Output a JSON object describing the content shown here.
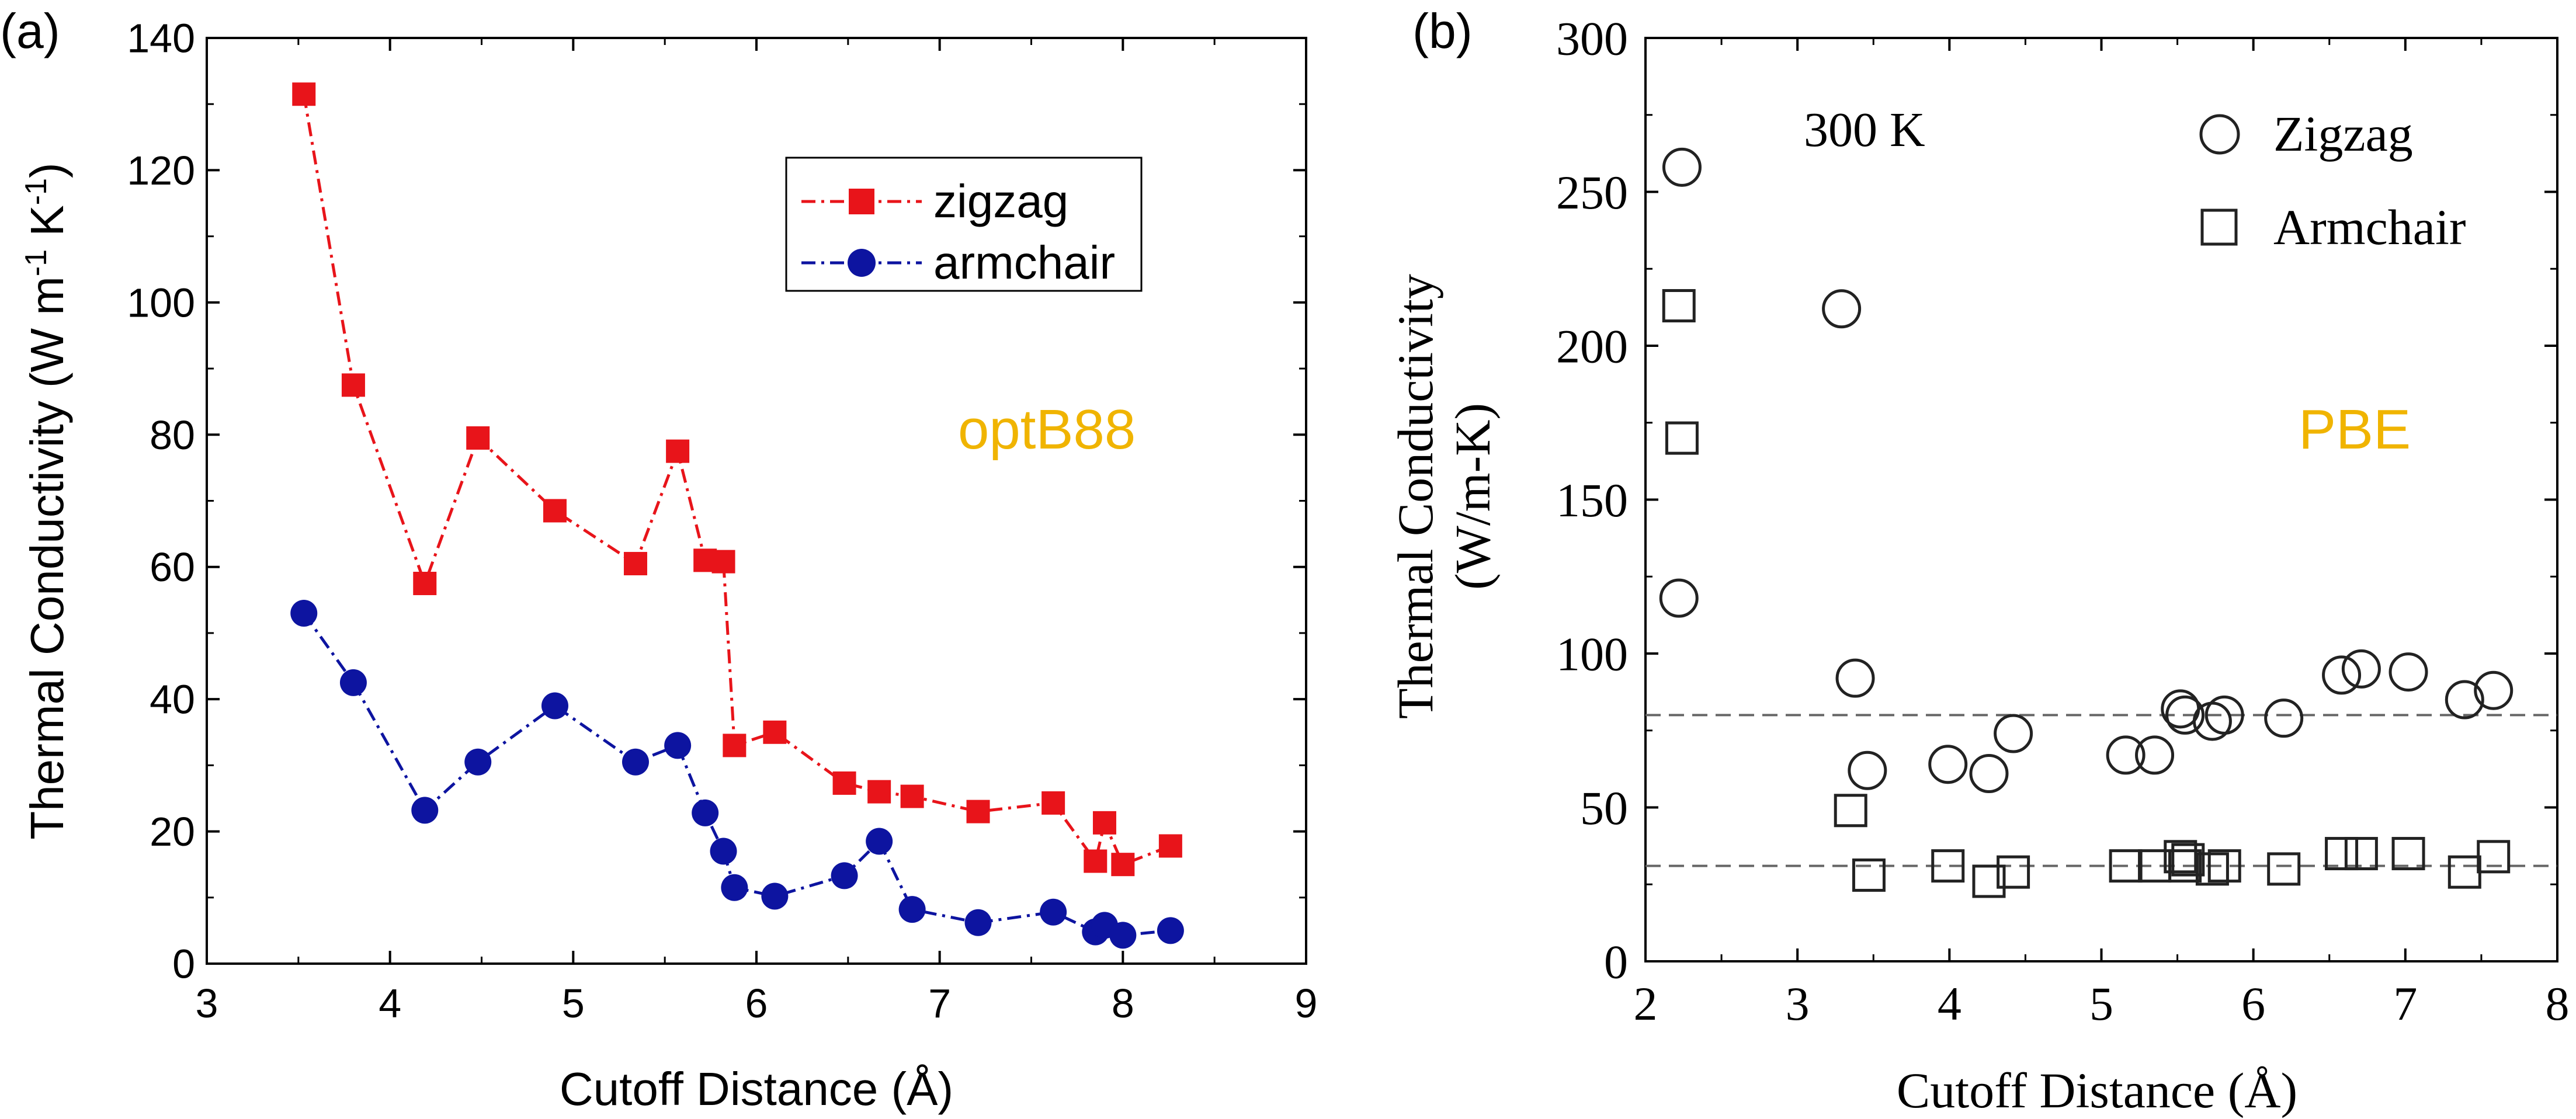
{
  "chart_data": [
    {
      "type": "line",
      "panel_label": "(a)",
      "title": "",
      "xlabel": "Cutoff Distance (Å)",
      "ylabel_main": "Thermal Conductivity (W m",
      "ylabel_sup1": "-1",
      "ylabel_mid": " K",
      "ylabel_sup2": "-1",
      "ylabel_end": ")",
      "xlim": [
        3,
        9
      ],
      "ylim": [
        0,
        140
      ],
      "xticks": [
        3,
        4,
        5,
        6,
        7,
        8,
        9
      ],
      "xtick_labels": [
        "3",
        "4",
        "5",
        "6",
        "7",
        "8",
        "9"
      ],
      "yticks": [
        0,
        20,
        40,
        60,
        80,
        100,
        120,
        140
      ],
      "ytick_labels": [
        "0",
        "20",
        "40",
        "60",
        "80",
        "100",
        "120",
        "140"
      ],
      "annotation": "optB88",
      "annotation_color": "#f0b400",
      "legend_position": "top-right",
      "series": [
        {
          "name": "zigzag",
          "marker": "square",
          "color": "#e8141a",
          "x": [
            3.53,
            3.8,
            4.19,
            4.48,
            4.9,
            5.34,
            5.57,
            5.72,
            5.82,
            5.88,
            6.1,
            6.48,
            6.67,
            6.85,
            7.21,
            7.62,
            7.85,
            7.9,
            8.0,
            8.26
          ],
          "values": [
            131.5,
            87.5,
            57.5,
            79.5,
            68.5,
            60.5,
            77.5,
            61,
            60.8,
            33,
            35,
            27.3,
            26,
            25.3,
            23,
            24.3,
            15.5,
            21.3,
            15,
            17.8
          ]
        },
        {
          "name": "armchair",
          "marker": "circle",
          "color": "#0d14a0",
          "x": [
            3.53,
            3.8,
            4.19,
            4.48,
            4.9,
            5.34,
            5.57,
            5.72,
            5.82,
            5.88,
            6.1,
            6.48,
            6.67,
            6.85,
            7.21,
            7.62,
            7.85,
            7.9,
            8.0,
            8.26
          ],
          "values": [
            53,
            42.5,
            23.2,
            30.5,
            39,
            30.5,
            33,
            22.8,
            17,
            11.5,
            10.2,
            13.3,
            18.5,
            8.2,
            6.2,
            7.8,
            4.8,
            5.8,
            4.3,
            5
          ]
        }
      ]
    },
    {
      "type": "scatter",
      "panel_label": "(b)",
      "title": "",
      "xlabel": "Cutoff Distance (Å)",
      "ylabel_line1": "Thermal Conductivity",
      "ylabel_line2": "(W/m-K)",
      "xlim": [
        2,
        8
      ],
      "ylim": [
        0,
        300
      ],
      "xticks": [
        2,
        3,
        4,
        5,
        6,
        7,
        8
      ],
      "xtick_labels": [
        "2",
        "3",
        "4",
        "5",
        "6",
        "7",
        "8"
      ],
      "yticks": [
        0,
        50,
        100,
        150,
        200,
        250,
        300
      ],
      "ytick_labels": [
        "0",
        "50",
        "100",
        "150",
        "200",
        "250",
        "300"
      ],
      "temperature_label": "300 K",
      "annotation": "PBE",
      "annotation_color": "#f0b400",
      "reference_lines": [
        80,
        31
      ],
      "legend_position": "top-right",
      "series": [
        {
          "name": "Zigzag",
          "marker": "open-circle",
          "color": "#222222",
          "x": [
            2.22,
            2.24,
            3.29,
            3.38,
            3.46,
            3.99,
            4.26,
            4.42,
            5.16,
            5.35,
            5.52,
            5.55,
            5.73,
            5.81,
            6.2,
            6.58,
            6.71,
            7.02,
            7.39,
            7.58
          ],
          "values": [
            118,
            258,
            212,
            92,
            62,
            64,
            61,
            74,
            67,
            67,
            82,
            80,
            78,
            80,
            79,
            93,
            95,
            94,
            85,
            88
          ]
        },
        {
          "name": "Armchair",
          "marker": "open-square",
          "color": "#222222",
          "x": [
            2.22,
            2.24,
            3.35,
            3.47,
            3.99,
            4.26,
            4.42,
            5.16,
            5.35,
            5.52,
            5.55,
            5.57,
            5.73,
            5.81,
            6.2,
            6.58,
            6.71,
            7.02,
            7.39,
            7.58
          ],
          "values": [
            213,
            170,
            49,
            28,
            31,
            26,
            29,
            31,
            31,
            34,
            31,
            33,
            30,
            31,
            30,
            35,
            35,
            35,
            29,
            34
          ]
        }
      ]
    }
  ]
}
